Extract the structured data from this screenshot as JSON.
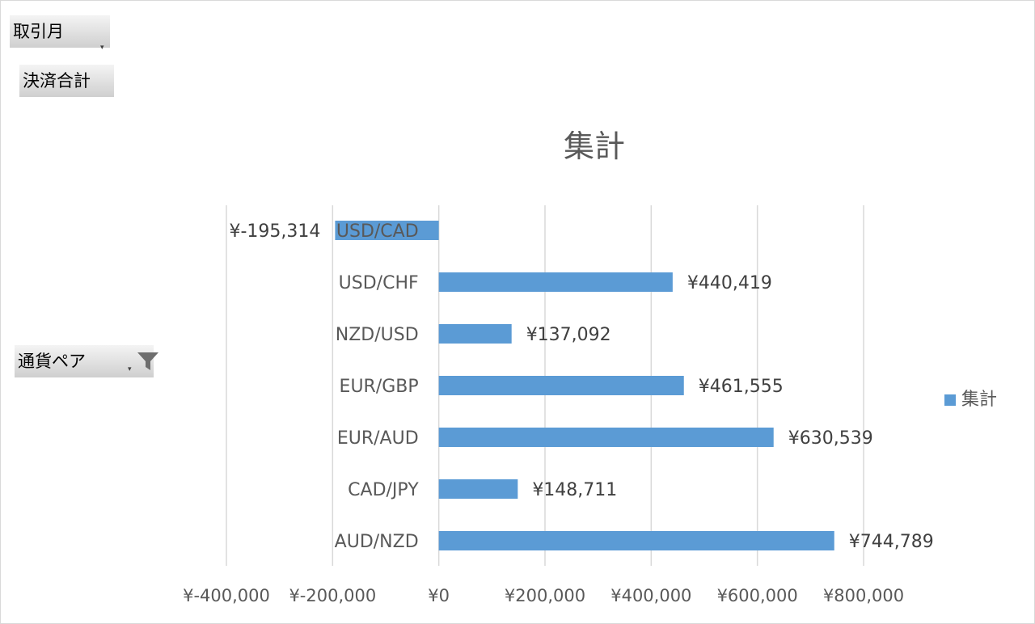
{
  "filters": {
    "month_button": "取引月",
    "value_button": "決済合計",
    "axis_button": "通貨ペア"
  },
  "colors": {
    "bar": "#5b9bd5",
    "grid": "#d9d9d9",
    "text": "#595959"
  },
  "icons": {
    "dropdown": "dropdown-arrow-icon",
    "filter": "filter-funnel-icon"
  },
  "chart_data": {
    "type": "bar",
    "orientation": "horizontal",
    "title": "集計",
    "categories": [
      "USD/CAD",
      "USD/CHF",
      "NZD/USD",
      "EUR/GBP",
      "EUR/AUD",
      "CAD/JPY",
      "AUD/NZD"
    ],
    "series": [
      {
        "name": "集計",
        "values": [
          -195314,
          440419,
          137092,
          461555,
          630539,
          148711,
          744789
        ],
        "labels": [
          "¥-195,314",
          "¥440,419",
          "¥137,092",
          "¥461,555",
          "¥630,539",
          "¥148,711",
          "¥744,789"
        ]
      }
    ],
    "xlim": [
      -400000,
      800000
    ],
    "ticks": [
      -400000,
      -200000,
      0,
      200000,
      400000,
      600000,
      800000
    ],
    "tick_labels": [
      "¥-400,000",
      "¥-200,000",
      "¥0",
      "¥200,000",
      "¥400,000",
      "¥600,000",
      "¥800,000"
    ],
    "grid": true,
    "legend": "right"
  }
}
